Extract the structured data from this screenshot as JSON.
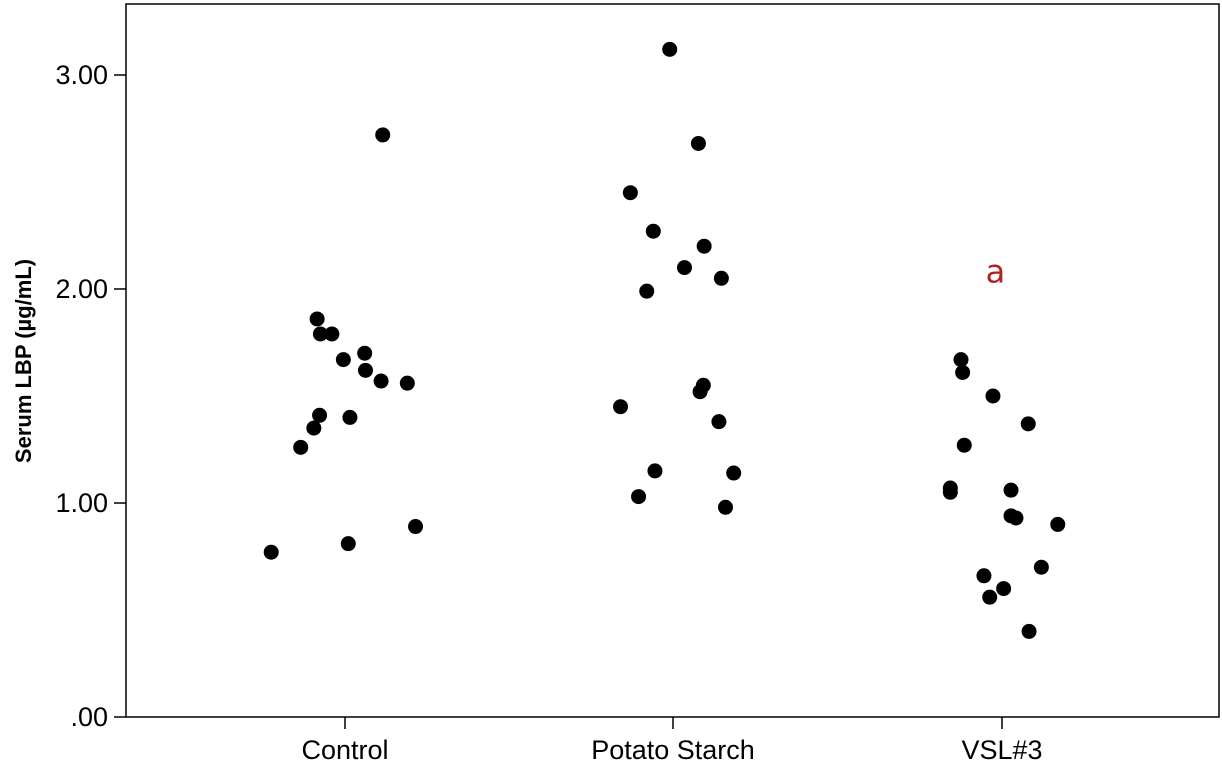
{
  "chart_data": {
    "type": "scatter",
    "title": "",
    "xlabel": "",
    "ylabel": "Serum LBP (µg/mL)",
    "ylim": [
      0,
      3.33
    ],
    "yticks": [
      0,
      1,
      2,
      3
    ],
    "ytick_labels": [
      ".00",
      "1.00",
      "2.00",
      "3.00"
    ],
    "grid": false,
    "marker_color": "#000000",
    "categories": [
      "Control",
      "Potato Starch",
      "VSL#3"
    ],
    "points": [
      {
        "group": "Control",
        "jitter": -0.45,
        "y": 0.77
      },
      {
        "group": "Control",
        "jitter": -0.27,
        "y": 1.26
      },
      {
        "group": "Control",
        "jitter": -0.19,
        "y": 1.35
      },
      {
        "group": "Control",
        "jitter": -0.155,
        "y": 1.41
      },
      {
        "group": "Control",
        "jitter": -0.17,
        "y": 1.86
      },
      {
        "group": "Control",
        "jitter": -0.15,
        "y": 1.79
      },
      {
        "group": "Control",
        "jitter": -0.08,
        "y": 1.79
      },
      {
        "group": "Control",
        "jitter": -0.01,
        "y": 1.67
      },
      {
        "group": "Control",
        "jitter": 0.03,
        "y": 1.4
      },
      {
        "group": "Control",
        "jitter": 0.02,
        "y": 0.81
      },
      {
        "group": "Control",
        "jitter": 0.12,
        "y": 1.7
      },
      {
        "group": "Control",
        "jitter": 0.125,
        "y": 1.62
      },
      {
        "group": "Control",
        "jitter": 0.22,
        "y": 1.57
      },
      {
        "group": "Control",
        "jitter": 0.23,
        "y": 2.72
      },
      {
        "group": "Control",
        "jitter": 0.38,
        "y": 1.56
      },
      {
        "group": "Control",
        "jitter": 0.43,
        "y": 0.89
      },
      {
        "group": "Potato Starch",
        "jitter": -0.32,
        "y": 1.45
      },
      {
        "group": "Potato Starch",
        "jitter": -0.26,
        "y": 2.45
      },
      {
        "group": "Potato Starch",
        "jitter": -0.21,
        "y": 1.03
      },
      {
        "group": "Potato Starch",
        "jitter": -0.16,
        "y": 1.99
      },
      {
        "group": "Potato Starch",
        "jitter": -0.12,
        "y": 2.27
      },
      {
        "group": "Potato Starch",
        "jitter": -0.11,
        "y": 1.15
      },
      {
        "group": "Potato Starch",
        "jitter": -0.02,
        "y": 3.12
      },
      {
        "group": "Potato Starch",
        "jitter": 0.07,
        "y": 2.1
      },
      {
        "group": "Potato Starch",
        "jitter": 0.155,
        "y": 2.68
      },
      {
        "group": "Potato Starch",
        "jitter": 0.165,
        "y": 1.52
      },
      {
        "group": "Potato Starch",
        "jitter": 0.185,
        "y": 1.55
      },
      {
        "group": "Potato Starch",
        "jitter": 0.19,
        "y": 2.2
      },
      {
        "group": "Potato Starch",
        "jitter": 0.28,
        "y": 1.38
      },
      {
        "group": "Potato Starch",
        "jitter": 0.295,
        "y": 2.05
      },
      {
        "group": "Potato Starch",
        "jitter": 0.32,
        "y": 0.98
      },
      {
        "group": "Potato Starch",
        "jitter": 0.37,
        "y": 1.14
      },
      {
        "group": "VSL#3",
        "jitter": -0.315,
        "y": 1.07
      },
      {
        "group": "VSL#3",
        "jitter": -0.315,
        "y": 1.05
      },
      {
        "group": "VSL#3",
        "jitter": -0.25,
        "y": 1.67
      },
      {
        "group": "VSL#3",
        "jitter": -0.24,
        "y": 1.61
      },
      {
        "group": "VSL#3",
        "jitter": -0.23,
        "y": 1.27
      },
      {
        "group": "VSL#3",
        "jitter": -0.11,
        "y": 0.66
      },
      {
        "group": "VSL#3",
        "jitter": -0.075,
        "y": 0.56
      },
      {
        "group": "VSL#3",
        "jitter": -0.055,
        "y": 1.5
      },
      {
        "group": "VSL#3",
        "jitter": 0.01,
        "y": 0.6
      },
      {
        "group": "VSL#3",
        "jitter": 0.055,
        "y": 1.06
      },
      {
        "group": "VSL#3",
        "jitter": 0.055,
        "y": 0.94
      },
      {
        "group": "VSL#3",
        "jitter": 0.085,
        "y": 0.93
      },
      {
        "group": "VSL#3",
        "jitter": 0.16,
        "y": 1.37
      },
      {
        "group": "VSL#3",
        "jitter": 0.165,
        "y": 0.4
      },
      {
        "group": "VSL#3",
        "jitter": 0.24,
        "y": 0.7
      },
      {
        "group": "VSL#3",
        "jitter": 0.34,
        "y": 0.9
      }
    ],
    "annotations": [
      {
        "text": "a",
        "category": "VSL#3",
        "jitter": -0.04,
        "y": 2.03,
        "color": "#b22222"
      }
    ]
  }
}
